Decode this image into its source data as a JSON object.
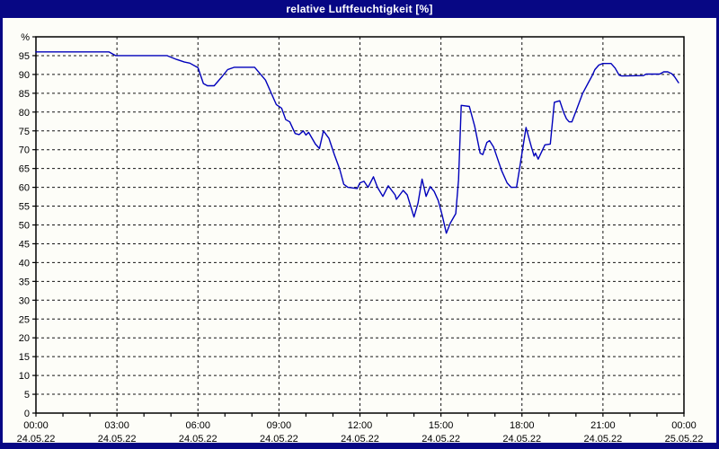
{
  "window": {
    "title": "relative Luftfeuchtigkeit [%]",
    "titlebar_color": "#070784",
    "content_background": "#fdfdf8"
  },
  "chart_data": {
    "type": "line",
    "title": "relative Luftfeuchtigkeit [%]",
    "ylabel": "%",
    "y_unit_label": "%",
    "ylim": [
      0,
      100
    ],
    "y_tick_step": 5,
    "y_tick_labels": [
      "0",
      "5",
      "10",
      "15",
      "20",
      "25",
      "30",
      "35",
      "40",
      "45",
      "50",
      "55",
      "60",
      "65",
      "70",
      "75",
      "80",
      "85",
      "90",
      "95"
    ],
    "x_range_hours": [
      0,
      24
    ],
    "x_minor_tick_hours": 1,
    "x_major_ticks": [
      {
        "hour": 0,
        "time": "00:00",
        "date": "24.05.22"
      },
      {
        "hour": 3,
        "time": "03:00",
        "date": "24.05.22"
      },
      {
        "hour": 6,
        "time": "06:00",
        "date": "24.05.22"
      },
      {
        "hour": 9,
        "time": "09:00",
        "date": "24.05.22"
      },
      {
        "hour": 12,
        "time": "12:00",
        "date": "24.05.22"
      },
      {
        "hour": 15,
        "time": "15:00",
        "date": "24.05.22"
      },
      {
        "hour": 18,
        "time": "18:00",
        "date": "24.05.22"
      },
      {
        "hour": 21,
        "time": "21:00",
        "date": "24.05.22"
      },
      {
        "hour": 24,
        "time": "00:00",
        "date": "25.05.22"
      }
    ],
    "grid": {
      "style": "dashed",
      "color": "#151515"
    },
    "line_color": "#0000bb",
    "axis_color": "#000000",
    "legend_position": "none",
    "series": [
      {
        "name": "relative Luftfeuchtigkeit",
        "points": [
          [
            0,
            96
          ],
          [
            2.7,
            96
          ],
          [
            2.95,
            95
          ],
          [
            4.85,
            95
          ],
          [
            5.2,
            94
          ],
          [
            5.5,
            93.3
          ],
          [
            5.7,
            93
          ],
          [
            6.0,
            91.8
          ],
          [
            6.2,
            87.6
          ],
          [
            6.35,
            87
          ],
          [
            6.6,
            87
          ],
          [
            6.9,
            89.5
          ],
          [
            7.1,
            91.3
          ],
          [
            7.35,
            91.9
          ],
          [
            8.1,
            91.9
          ],
          [
            8.5,
            88.5
          ],
          [
            8.9,
            82
          ],
          [
            9.1,
            81
          ],
          [
            9.25,
            78
          ],
          [
            9.4,
            77.4
          ],
          [
            9.6,
            74.3
          ],
          [
            9.75,
            74
          ],
          [
            9.9,
            75
          ],
          [
            10.0,
            73.9
          ],
          [
            10.1,
            74.6
          ],
          [
            10.35,
            71.5
          ],
          [
            10.5,
            70.3
          ],
          [
            10.65,
            75
          ],
          [
            10.85,
            73
          ],
          [
            11.05,
            68.7
          ],
          [
            11.25,
            64.8
          ],
          [
            11.4,
            60.8
          ],
          [
            11.55,
            60
          ],
          [
            11.9,
            59.7
          ],
          [
            12.0,
            61.2
          ],
          [
            12.15,
            61.6
          ],
          [
            12.3,
            60
          ],
          [
            12.5,
            62.8
          ],
          [
            12.65,
            60
          ],
          [
            12.85,
            57.6
          ],
          [
            13.05,
            60.4
          ],
          [
            13.3,
            58
          ],
          [
            13.35,
            56.8
          ],
          [
            13.6,
            59.2
          ],
          [
            13.75,
            58
          ],
          [
            14.0,
            52.1
          ],
          [
            14.15,
            55.8
          ],
          [
            14.3,
            62.2
          ],
          [
            14.45,
            57.6
          ],
          [
            14.6,
            60.2
          ],
          [
            14.75,
            58.9
          ],
          [
            14.9,
            56.5
          ],
          [
            15.05,
            52.5
          ],
          [
            15.2,
            47.8
          ],
          [
            15.35,
            50.5
          ],
          [
            15.55,
            53
          ],
          [
            15.65,
            62
          ],
          [
            15.75,
            81.8
          ],
          [
            16.05,
            81.5
          ],
          [
            16.25,
            76.2
          ],
          [
            16.45,
            69.1
          ],
          [
            16.55,
            68.7
          ],
          [
            16.7,
            71.9
          ],
          [
            16.8,
            72.4
          ],
          [
            16.95,
            70.7
          ],
          [
            17.25,
            64.4
          ],
          [
            17.45,
            61.2
          ],
          [
            17.6,
            60
          ],
          [
            17.8,
            60
          ],
          [
            17.9,
            64.4
          ],
          [
            18.15,
            75.9
          ],
          [
            18.35,
            70.7
          ],
          [
            18.45,
            68.3
          ],
          [
            18.5,
            69.1
          ],
          [
            18.6,
            67.5
          ],
          [
            18.85,
            71.3
          ],
          [
            19.05,
            71.5
          ],
          [
            19.2,
            82.6
          ],
          [
            19.4,
            83
          ],
          [
            19.55,
            79.8
          ],
          [
            19.65,
            78.2
          ],
          [
            19.75,
            77.4
          ],
          [
            19.85,
            77.4
          ],
          [
            20.0,
            80.2
          ],
          [
            20.25,
            85
          ],
          [
            20.45,
            87.7
          ],
          [
            20.6,
            89.7
          ],
          [
            20.7,
            91.3
          ],
          [
            20.85,
            92.5
          ],
          [
            21.0,
            92.9
          ],
          [
            21.3,
            92.9
          ],
          [
            21.45,
            91.7
          ],
          [
            21.6,
            89.8
          ],
          [
            21.7,
            89.6
          ],
          [
            22.5,
            89.7
          ],
          [
            22.6,
            90.1
          ],
          [
            23.1,
            90.1
          ],
          [
            23.25,
            90.7
          ],
          [
            23.4,
            90.7
          ],
          [
            23.55,
            90.2
          ],
          [
            23.65,
            89.4
          ],
          [
            23.8,
            87.8
          ]
        ]
      }
    ]
  }
}
